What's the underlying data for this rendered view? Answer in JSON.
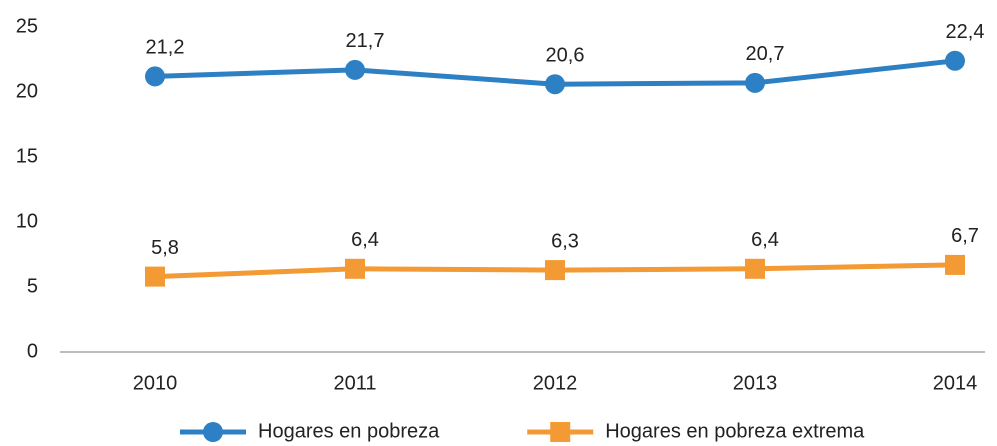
{
  "chart_data": {
    "type": "line",
    "categories": [
      "2010",
      "2011",
      "2012",
      "2013",
      "2014"
    ],
    "series": [
      {
        "name": "Hogares en pobreza",
        "color": "#2e80c4",
        "marker": "circle",
        "values": [
          21.2,
          21.7,
          20.6,
          20.7,
          22.4
        ],
        "value_labels": [
          "21,2",
          "21,7",
          "20,6",
          "20,7",
          "22,4"
        ]
      },
      {
        "name": "Hogares en pobreza extrema",
        "color": "#f39a34",
        "marker": "square",
        "values": [
          5.8,
          6.4,
          6.3,
          6.4,
          6.7
        ],
        "value_labels": [
          "5,8",
          "6,4",
          "6,3",
          "6,4",
          "6,7"
        ]
      }
    ],
    "ylim": [
      0,
      25
    ],
    "yticks": [
      0,
      5,
      10,
      15,
      20,
      25
    ],
    "grid": false,
    "legend": "bottom"
  }
}
